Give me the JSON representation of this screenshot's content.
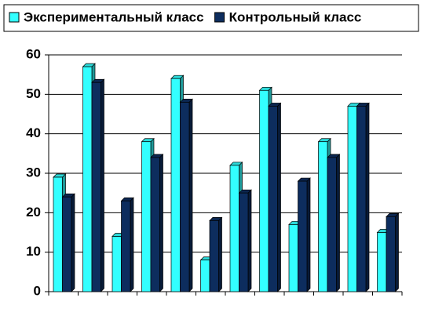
{
  "chart_data": {
    "type": "bar",
    "categories": [
      null,
      null,
      null,
      null,
      null,
      null,
      null,
      null,
      null,
      null,
      null,
      null
    ],
    "series": [
      {
        "name": "Экспериментальный класс",
        "color": "#33ffff",
        "values": [
          29,
          57,
          14,
          38,
          54,
          8,
          32,
          51,
          17,
          38,
          47,
          15
        ]
      },
      {
        "name": "Контрольный класс",
        "color": "#0d2d5e",
        "values": [
          24,
          53,
          23,
          34,
          48,
          18,
          25,
          47,
          28,
          34,
          47,
          19
        ]
      }
    ],
    "ylim": [
      0,
      60
    ],
    "yticks": [
      0,
      10,
      20,
      30,
      40,
      50,
      60
    ],
    "grid": true,
    "legend": "top"
  }
}
